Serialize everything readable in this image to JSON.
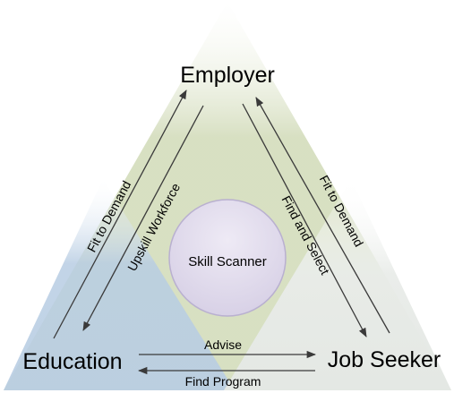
{
  "nodes": {
    "employer": "Employer",
    "education": "Education",
    "job_seeker": "Job Seeker",
    "center": "Skill Scanner"
  },
  "edges": {
    "fit_to_demand_left": "Fit to Demand",
    "upskill_workforce": "Upskill Workforce",
    "find_and_select": "Find and Select",
    "fit_to_demand_right": "Fit to Demand",
    "advise": "Advise",
    "find_program": "Find Program"
  },
  "colors": {
    "top_triangle": "#d3dcbb",
    "left_triangle": "#b8cde3",
    "right_triangle": "#e9ece9",
    "circle": "#d6cfe5",
    "circle_stroke": "#b9b0d0",
    "arrow": "#3a3a3a"
  }
}
